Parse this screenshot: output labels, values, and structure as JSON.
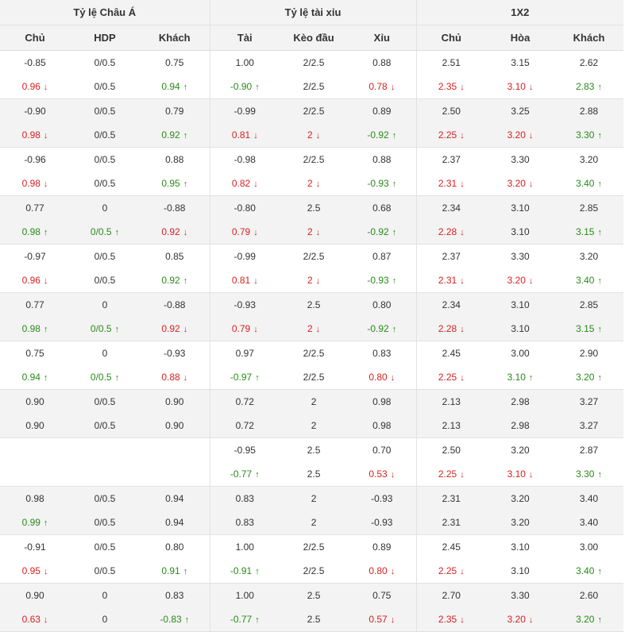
{
  "headers": {
    "group": [
      "Tỷ lệ Châu Á",
      "Tỷ lệ tài xỉu",
      "1X2"
    ],
    "sub": [
      "Chủ",
      "HDP",
      "Khách",
      "Tài",
      "Kèo đầu",
      "Xỉu",
      "Chủ",
      "Hòa",
      "Khách"
    ]
  },
  "rows": [
    [
      [
        "-0.85",
        ""
      ],
      [
        "0/0.5",
        ""
      ],
      [
        "0.75",
        ""
      ],
      [
        "1.00",
        ""
      ],
      [
        "2/2.5",
        ""
      ],
      [
        "0.88",
        ""
      ],
      [
        "2.51",
        ""
      ],
      [
        "3.15",
        ""
      ],
      [
        "2.62",
        ""
      ]
    ],
    [
      [
        "0.96",
        "d"
      ],
      [
        "0/0.5",
        ""
      ],
      [
        "0.94",
        "u"
      ],
      [
        "-0.90",
        "u"
      ],
      [
        "2/2.5",
        ""
      ],
      [
        "0.78",
        "d"
      ],
      [
        "2.35",
        "d"
      ],
      [
        "3.10",
        "d"
      ],
      [
        "2.83",
        "u"
      ]
    ],
    [
      [
        "-0.90",
        ""
      ],
      [
        "0/0.5",
        ""
      ],
      [
        "0.79",
        ""
      ],
      [
        "-0.99",
        ""
      ],
      [
        "2/2.5",
        ""
      ],
      [
        "0.89",
        ""
      ],
      [
        "2.50",
        ""
      ],
      [
        "3.25",
        ""
      ],
      [
        "2.88",
        ""
      ]
    ],
    [
      [
        "0.98",
        "d"
      ],
      [
        "0/0.5",
        ""
      ],
      [
        "0.92",
        "u"
      ],
      [
        "0.81",
        "d"
      ],
      [
        "2",
        "d"
      ],
      [
        "-0.92",
        "u"
      ],
      [
        "2.25",
        "d"
      ],
      [
        "3.20",
        "d"
      ],
      [
        "3.30",
        "u"
      ]
    ],
    [
      [
        "-0.96",
        ""
      ],
      [
        "0/0.5",
        ""
      ],
      [
        "0.88",
        ""
      ],
      [
        "-0.98",
        ""
      ],
      [
        "2/2.5",
        ""
      ],
      [
        "0.88",
        ""
      ],
      [
        "2.37",
        ""
      ],
      [
        "3.30",
        ""
      ],
      [
        "3.20",
        ""
      ]
    ],
    [
      [
        "0.98",
        "d"
      ],
      [
        "0/0.5",
        ""
      ],
      [
        "0.95",
        "u"
      ],
      [
        "0.82",
        "d"
      ],
      [
        "2",
        "d"
      ],
      [
        "-0.93",
        "u"
      ],
      [
        "2.31",
        "d"
      ],
      [
        "3.20",
        "d"
      ],
      [
        "3.40",
        "u"
      ]
    ],
    [
      [
        "0.77",
        ""
      ],
      [
        "0",
        ""
      ],
      [
        "-0.88",
        ""
      ],
      [
        "-0.80",
        ""
      ],
      [
        "2.5",
        ""
      ],
      [
        "0.68",
        ""
      ],
      [
        "2.34",
        ""
      ],
      [
        "3.10",
        ""
      ],
      [
        "2.85",
        ""
      ]
    ],
    [
      [
        "0.98",
        "u"
      ],
      [
        "0/0.5",
        "u"
      ],
      [
        "0.92",
        "d"
      ],
      [
        "0.79",
        "d"
      ],
      [
        "2",
        "d"
      ],
      [
        "-0.92",
        "u"
      ],
      [
        "2.28",
        "d"
      ],
      [
        "3.10",
        ""
      ],
      [
        "3.15",
        "u"
      ]
    ],
    [
      [
        "-0.97",
        ""
      ],
      [
        "0/0.5",
        ""
      ],
      [
        "0.85",
        ""
      ],
      [
        "-0.99",
        ""
      ],
      [
        "2/2.5",
        ""
      ],
      [
        "0.87",
        ""
      ],
      [
        "2.37",
        ""
      ],
      [
        "3.30",
        ""
      ],
      [
        "3.20",
        ""
      ]
    ],
    [
      [
        "0.96",
        "d"
      ],
      [
        "0/0.5",
        ""
      ],
      [
        "0.92",
        "u"
      ],
      [
        "0.81",
        "d"
      ],
      [
        "2",
        "d"
      ],
      [
        "-0.93",
        "u"
      ],
      [
        "2.31",
        "d"
      ],
      [
        "3.20",
        "d"
      ],
      [
        "3.40",
        "u"
      ]
    ],
    [
      [
        "0.77",
        ""
      ],
      [
        "0",
        ""
      ],
      [
        "-0.88",
        ""
      ],
      [
        "-0.93",
        ""
      ],
      [
        "2.5",
        ""
      ],
      [
        "0.80",
        ""
      ],
      [
        "2.34",
        ""
      ],
      [
        "3.10",
        ""
      ],
      [
        "2.85",
        ""
      ]
    ],
    [
      [
        "0.98",
        "u"
      ],
      [
        "0/0.5",
        "u"
      ],
      [
        "0.92",
        "d"
      ],
      [
        "0.79",
        "d"
      ],
      [
        "2",
        "d"
      ],
      [
        "-0.92",
        "u"
      ],
      [
        "2.28",
        "d"
      ],
      [
        "3.10",
        ""
      ],
      [
        "3.15",
        "u"
      ]
    ],
    [
      [
        "0.75",
        ""
      ],
      [
        "0",
        ""
      ],
      [
        "-0.93",
        ""
      ],
      [
        "0.97",
        ""
      ],
      [
        "2/2.5",
        ""
      ],
      [
        "0.83",
        ""
      ],
      [
        "2.45",
        ""
      ],
      [
        "3.00",
        ""
      ],
      [
        "2.90",
        ""
      ]
    ],
    [
      [
        "0.94",
        "u"
      ],
      [
        "0/0.5",
        "u"
      ],
      [
        "0.88",
        "d"
      ],
      [
        "-0.97",
        "u"
      ],
      [
        "2/2.5",
        ""
      ],
      [
        "0.80",
        "d"
      ],
      [
        "2.25",
        "d"
      ],
      [
        "3.10",
        "u"
      ],
      [
        "3.20",
        "u"
      ]
    ],
    [
      [
        "0.90",
        ""
      ],
      [
        "0/0.5",
        ""
      ],
      [
        "0.90",
        ""
      ],
      [
        "0.72",
        ""
      ],
      [
        "2",
        ""
      ],
      [
        "0.98",
        ""
      ],
      [
        "2.13",
        ""
      ],
      [
        "2.98",
        ""
      ],
      [
        "3.27",
        ""
      ]
    ],
    [
      [
        "0.90",
        ""
      ],
      [
        "0/0.5",
        ""
      ],
      [
        "0.90",
        ""
      ],
      [
        "0.72",
        ""
      ],
      [
        "2",
        ""
      ],
      [
        "0.98",
        ""
      ],
      [
        "2.13",
        ""
      ],
      [
        "2.98",
        ""
      ],
      [
        "3.27",
        ""
      ]
    ],
    [
      [
        "",
        ""
      ],
      [
        "",
        ""
      ],
      [
        "",
        ""
      ],
      [
        "-0.95",
        ""
      ],
      [
        "2.5",
        ""
      ],
      [
        "0.70",
        ""
      ],
      [
        "2.50",
        ""
      ],
      [
        "3.20",
        ""
      ],
      [
        "2.87",
        ""
      ]
    ],
    [
      [
        "",
        ""
      ],
      [
        "",
        ""
      ],
      [
        "",
        ""
      ],
      [
        "-0.77",
        "u"
      ],
      [
        "2.5",
        ""
      ],
      [
        "0.53",
        "d"
      ],
      [
        "2.25",
        "d"
      ],
      [
        "3.10",
        "d"
      ],
      [
        "3.30",
        "u"
      ]
    ],
    [
      [
        "0.98",
        ""
      ],
      [
        "0/0.5",
        ""
      ],
      [
        "0.94",
        ""
      ],
      [
        "0.83",
        ""
      ],
      [
        "2",
        ""
      ],
      [
        "-0.93",
        ""
      ],
      [
        "2.31",
        ""
      ],
      [
        "3.20",
        ""
      ],
      [
        "3.40",
        ""
      ]
    ],
    [
      [
        "0.99",
        "u"
      ],
      [
        "0/0.5",
        ""
      ],
      [
        "0.94",
        ""
      ],
      [
        "0.83",
        ""
      ],
      [
        "2",
        ""
      ],
      [
        "-0.93",
        ""
      ],
      [
        "2.31",
        ""
      ],
      [
        "3.20",
        ""
      ],
      [
        "3.40",
        ""
      ]
    ],
    [
      [
        "-0.91",
        ""
      ],
      [
        "0/0.5",
        ""
      ],
      [
        "0.80",
        ""
      ],
      [
        "1.00",
        ""
      ],
      [
        "2/2.5",
        ""
      ],
      [
        "0.89",
        ""
      ],
      [
        "2.45",
        ""
      ],
      [
        "3.10",
        ""
      ],
      [
        "3.00",
        ""
      ]
    ],
    [
      [
        "0.95",
        "d"
      ],
      [
        "0/0.5",
        ""
      ],
      [
        "0.91",
        "u"
      ],
      [
        "-0.91",
        "u"
      ],
      [
        "2/2.5",
        ""
      ],
      [
        "0.80",
        "d"
      ],
      [
        "2.25",
        "d"
      ],
      [
        "3.10",
        ""
      ],
      [
        "3.40",
        "u"
      ]
    ],
    [
      [
        "0.90",
        ""
      ],
      [
        "0",
        ""
      ],
      [
        "0.83",
        ""
      ],
      [
        "1.00",
        ""
      ],
      [
        "2.5",
        ""
      ],
      [
        "0.75",
        ""
      ],
      [
        "2.70",
        ""
      ],
      [
        "3.30",
        ""
      ],
      [
        "2.60",
        ""
      ]
    ],
    [
      [
        "0.63",
        "d"
      ],
      [
        "0",
        ""
      ],
      [
        "-0.83",
        "u"
      ],
      [
        "-0.77",
        "u"
      ],
      [
        "2.5",
        ""
      ],
      [
        "0.57",
        "d"
      ],
      [
        "2.35",
        "d"
      ],
      [
        "3.20",
        "d"
      ],
      [
        "3.20",
        "u"
      ]
    ]
  ],
  "colors": {
    "up": "#2a8a1a",
    "down": "#d62121",
    "header_bg": "#f3f3f3",
    "alt_bg": "#f3f3f3"
  },
  "icons": {
    "up": "arrow-up-icon",
    "down": "arrow-down-icon"
  }
}
